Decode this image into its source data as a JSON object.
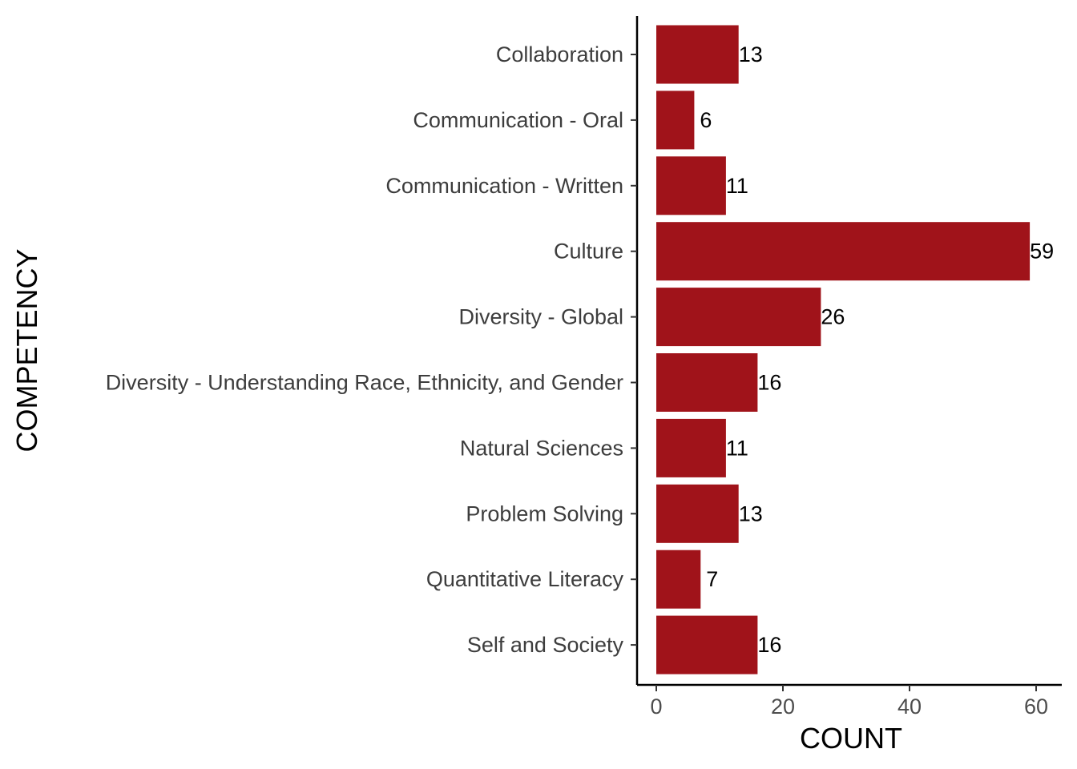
{
  "chart_data": {
    "type": "bar",
    "orientation": "horizontal",
    "title": "",
    "xlabel": "COUNT",
    "ylabel": "COMPETENCY",
    "categories": [
      "Collaboration",
      "Communication - Oral",
      "Communication - Written",
      "Culture",
      "Diversity - Global",
      "Diversity - Understanding Race, Ethnicity, and Gender",
      "Natural Sciences",
      "Problem Solving",
      "Quantitative Literacy",
      "Self and Society"
    ],
    "values": [
      13,
      6,
      11,
      59,
      26,
      16,
      11,
      13,
      7,
      16
    ],
    "xlim": [
      0,
      63
    ],
    "xticks": [
      0,
      20,
      40,
      60
    ],
    "bar_color": "#a0131a",
    "grid": false,
    "legend": "none"
  }
}
